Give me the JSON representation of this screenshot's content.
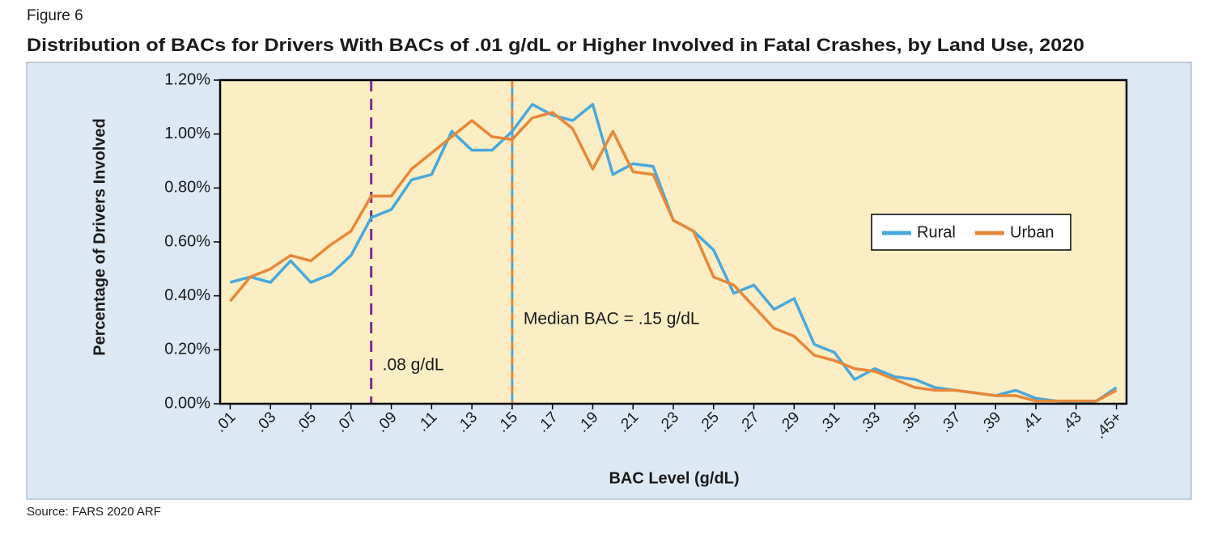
{
  "chart_data": {
    "type": "line",
    "figure_label": "Figure 6",
    "title": "Distribution of BACs for Drivers With BACs of .01 g/dL or Higher Involved in Fatal Crashes, by Land Use, 2020",
    "x_label": "BAC Level (g/dL)",
    "y_label": "Percentage of Drivers Involved",
    "source": "Source: FARS 2020 ARF",
    "x": [
      0.01,
      0.02,
      0.03,
      0.04,
      0.05,
      0.06,
      0.07,
      0.08,
      0.09,
      0.1,
      0.11,
      0.12,
      0.13,
      0.14,
      0.15,
      0.16,
      0.17,
      0.18,
      0.19,
      0.2,
      0.21,
      0.22,
      0.23,
      0.24,
      0.25,
      0.26,
      0.27,
      0.28,
      0.29,
      0.3,
      0.31,
      0.32,
      0.33,
      0.34,
      0.35,
      0.36,
      0.37,
      0.38,
      0.39,
      0.4,
      0.41,
      0.42,
      0.43,
      0.44,
      0.45
    ],
    "series": [
      {
        "name": "Rural",
        "color": "#4aa8dc",
        "values": [
          0.45,
          0.47,
          0.45,
          0.53,
          0.45,
          0.48,
          0.55,
          0.69,
          0.72,
          0.83,
          0.85,
          1.01,
          0.94,
          0.94,
          1.01,
          1.11,
          1.07,
          1.05,
          1.11,
          0.85,
          0.89,
          0.88,
          0.68,
          0.64,
          0.57,
          0.41,
          0.44,
          0.35,
          0.39,
          0.22,
          0.19,
          0.09,
          0.13,
          0.1,
          0.09,
          0.06,
          0.05,
          0.04,
          0.03,
          0.05,
          0.02,
          0.01,
          0.0,
          0.01,
          0.06
        ]
      },
      {
        "name": "Urban",
        "color": "#e8883a",
        "values": [
          0.38,
          0.47,
          0.5,
          0.55,
          0.53,
          0.59,
          0.64,
          0.77,
          0.77,
          0.87,
          0.93,
          0.99,
          1.05,
          0.99,
          0.98,
          1.06,
          1.08,
          1.02,
          0.87,
          1.01,
          0.86,
          0.85,
          0.68,
          0.64,
          0.47,
          0.44,
          0.36,
          0.28,
          0.25,
          0.18,
          0.16,
          0.13,
          0.12,
          0.09,
          0.06,
          0.05,
          0.05,
          0.04,
          0.03,
          0.03,
          0.01,
          0.01,
          0.01,
          0.01,
          0.05
        ]
      }
    ],
    "xlim": [
      0.005,
      0.455
    ],
    "xticks": [
      {
        "value": 0.01,
        "label": ".01"
      },
      {
        "value": 0.03,
        "label": ".03"
      },
      {
        "value": 0.05,
        "label": ".05"
      },
      {
        "value": 0.07,
        "label": ".07"
      },
      {
        "value": 0.09,
        "label": ".09"
      },
      {
        "value": 0.11,
        "label": ".11"
      },
      {
        "value": 0.13,
        "label": ".13"
      },
      {
        "value": 0.15,
        "label": ".15"
      },
      {
        "value": 0.17,
        "label": ".17"
      },
      {
        "value": 0.19,
        "label": ".19"
      },
      {
        "value": 0.21,
        "label": ".21"
      },
      {
        "value": 0.23,
        "label": ".23"
      },
      {
        "value": 0.25,
        "label": ".25"
      },
      {
        "value": 0.27,
        "label": ".27"
      },
      {
        "value": 0.29,
        "label": ".29"
      },
      {
        "value": 0.31,
        "label": ".31"
      },
      {
        "value": 0.33,
        "label": ".33"
      },
      {
        "value": 0.35,
        "label": ".35"
      },
      {
        "value": 0.37,
        "label": ".37"
      },
      {
        "value": 0.39,
        "label": ".39"
      },
      {
        "value": 0.41,
        "label": ".41"
      },
      {
        "value": 0.43,
        "label": ".43"
      },
      {
        "value": 0.45,
        "label": ".45+"
      }
    ],
    "ylim": [
      0,
      1.2
    ],
    "yticks": [
      {
        "value": 0,
        "label": "0.00%"
      },
      {
        "value": 0.2,
        "label": "0.20%"
      },
      {
        "value": 0.4,
        "label": "0.40%"
      },
      {
        "value": 0.6,
        "label": "0.60%"
      },
      {
        "value": 0.8,
        "label": "0.80%"
      },
      {
        "value": 1.0,
        "label": "1.00%"
      },
      {
        "value": 1.2,
        "label": "1.20%"
      }
    ],
    "reference_lines": [
      {
        "x": 0.08,
        "label": ".08 g/dL",
        "colors": [
          "#7b2d8e"
        ]
      },
      {
        "x": 0.15,
        "label": "Median BAC = .15 g/dL",
        "colors": [
          "#e8883a",
          "#4aa8dc"
        ]
      }
    ],
    "legend": "right"
  }
}
